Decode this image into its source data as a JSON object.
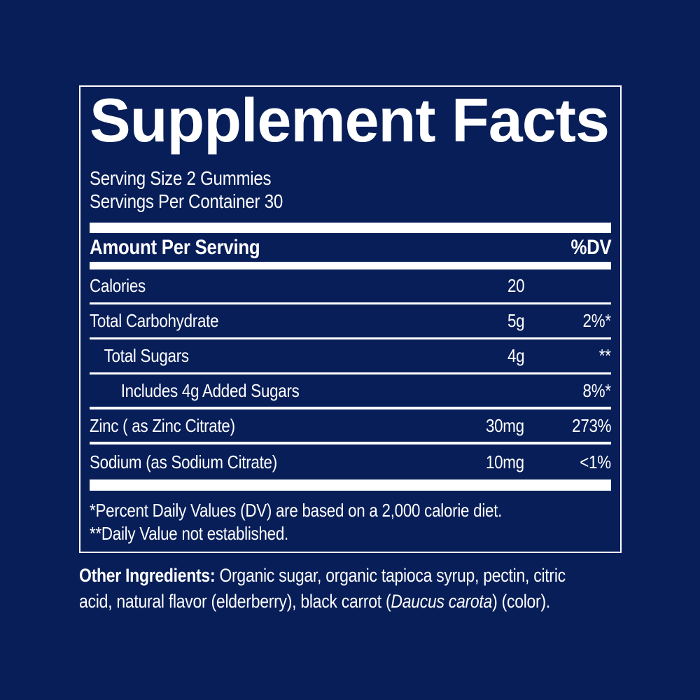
{
  "colors": {
    "background": "#081e58",
    "text": "#ffffff"
  },
  "label": {
    "title": "Supplement Facts",
    "serving_size": "Serving Size 2 Gummies",
    "servings_per_container": "Servings Per Container 30",
    "header": {
      "amount": "Amount Per Serving",
      "dv": "%DV"
    },
    "rows": [
      {
        "name": "Calories",
        "amount": "20",
        "dv": ""
      },
      {
        "name": "Total Carbohydrate",
        "amount": "5g",
        "dv": "2%*"
      },
      {
        "name": "Total Sugars",
        "amount": "4g",
        "dv": "**"
      },
      {
        "name": "Includes 4g Added Sugars",
        "amount": "",
        "dv": "8%*"
      },
      {
        "name": "Zinc ( as Zinc Citrate)",
        "amount": "30mg",
        "dv": "273%"
      },
      {
        "name": "Sodium (as Sodium Citrate)",
        "amount": "10mg",
        "dv": "<1%"
      }
    ],
    "footnotes": [
      "*Percent Daily Values (DV) are based on a 2,000 calorie diet.",
      "**Daily Value not established."
    ]
  },
  "other_ingredients": {
    "label": "Other Ingredients:",
    "line1_rest": " Organic sugar, organic tapioca syrup, pectin, citric",
    "line2_before": "acid, natural flavor (elderberry), black carrot (",
    "italic": "Daucus carota",
    "line2_after": ") (color)."
  }
}
